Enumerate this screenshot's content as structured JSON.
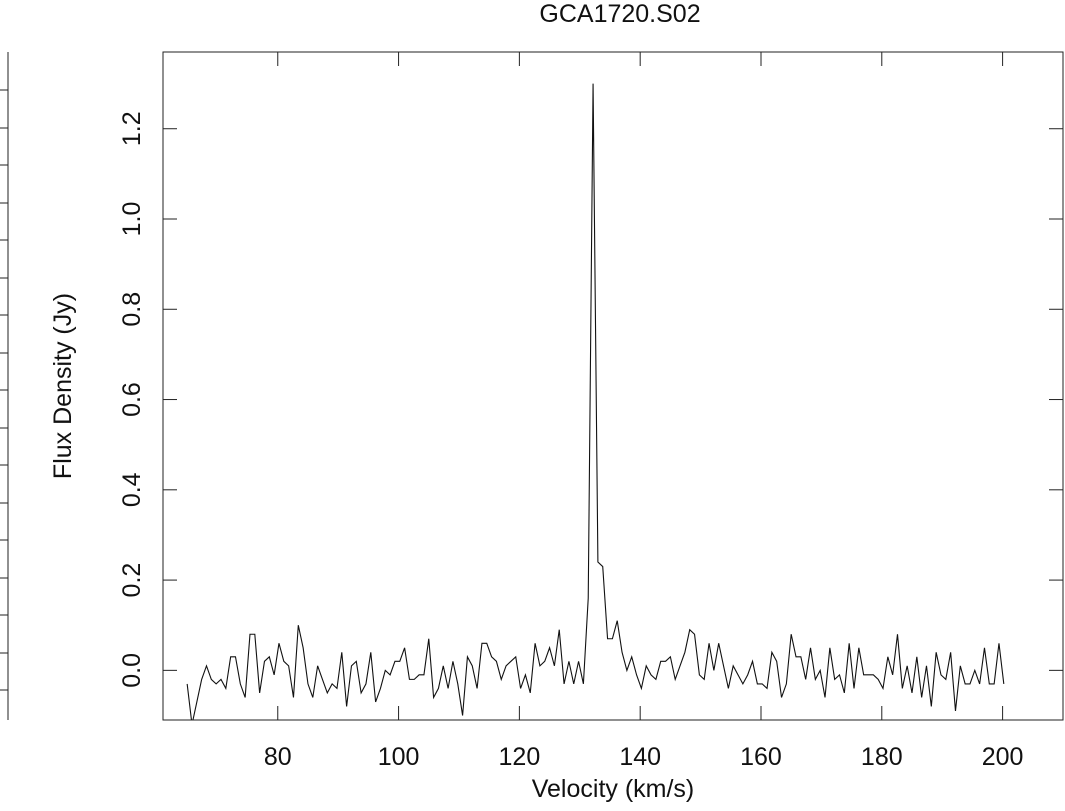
{
  "chart_data": {
    "type": "line",
    "title": "GCA1720.S02",
    "xlabel": "Velocity (km/s)",
    "ylabel": "Flux Density (Jy)",
    "color": "#111111",
    "xlim": [
      61,
      210
    ],
    "ylim": [
      -0.11,
      1.37
    ],
    "xticks": [
      80,
      100,
      120,
      140,
      160,
      180,
      200
    ],
    "yticks": [
      {
        "value": 0,
        "label": "0.0"
      },
      0.2,
      0.4,
      0.6,
      0.8,
      {
        "value": 1,
        "label": "1.0"
      },
      1.2
    ],
    "x": [
      65.0,
      65.8,
      66.6,
      67.4,
      68.2,
      69.0,
      69.8,
      70.6,
      71.4,
      72.2,
      73.0,
      73.8,
      74.6,
      75.4,
      76.2,
      77.0,
      77.8,
      78.6,
      79.4,
      80.2,
      81.0,
      81.8,
      82.6,
      83.4,
      84.2,
      85.0,
      85.8,
      86.6,
      87.4,
      88.2,
      89.0,
      89.8,
      90.6,
      91.4,
      92.2,
      93.0,
      93.8,
      94.6,
      95.4,
      96.2,
      97.0,
      97.8,
      98.6,
      99.4,
      100.2,
      101.0,
      101.8,
      102.6,
      103.4,
      104.2,
      105.0,
      105.8,
      106.6,
      107.4,
      108.2,
      109.0,
      109.8,
      110.6,
      111.4,
      112.2,
      113.0,
      113.8,
      114.6,
      115.4,
      116.2,
      117.0,
      117.8,
      118.6,
      119.4,
      120.2,
      121.0,
      121.8,
      122.6,
      123.4,
      124.2,
      125.0,
      125.8,
      126.6,
      127.4,
      128.2,
      129.0,
      129.8,
      130.6,
      131.4,
      132.2,
      133.0,
      133.8,
      134.6,
      135.4,
      136.2,
      137.0,
      137.8,
      138.6,
      139.4,
      140.2,
      141.0,
      141.8,
      142.6,
      143.4,
      144.2,
      145.0,
      145.8,
      146.6,
      147.4,
      148.2,
      149.0,
      149.8,
      150.6,
      151.4,
      152.2,
      153.0,
      153.8,
      154.6,
      155.4,
      156.2,
      157.0,
      157.8,
      158.6,
      159.4,
      160.2,
      161.0,
      161.8,
      162.6,
      163.4,
      164.2,
      165.0,
      165.8,
      166.6,
      167.4,
      168.2,
      169.0,
      169.8,
      170.6,
      171.4,
      172.2,
      173.0,
      173.8,
      174.6,
      175.4,
      176.2,
      177.0,
      177.8,
      178.6,
      179.4,
      180.2,
      181.0,
      181.8,
      182.6,
      183.4,
      184.2,
      185.0,
      185.8,
      186.6,
      187.4,
      188.2,
      189.0,
      189.8,
      190.6,
      191.4,
      192.2,
      193.0,
      193.8,
      194.6,
      195.4,
      196.2,
      197.0,
      197.8,
      198.6,
      199.4,
      200.2
    ],
    "values": [
      -0.03,
      -0.12,
      -0.07,
      -0.02,
      0.01,
      -0.02,
      -0.03,
      -0.02,
      -0.04,
      0.03,
      0.03,
      -0.03,
      -0.06,
      0.08,
      0.08,
      -0.05,
      0.02,
      0.03,
      -0.01,
      0.06,
      0.02,
      0.01,
      -0.06,
      0.1,
      0.05,
      -0.03,
      -0.06,
      0.01,
      -0.02,
      -0.05,
      -0.03,
      -0.04,
      0.04,
      -0.08,
      0.01,
      0.02,
      -0.05,
      -0.03,
      0.04,
      -0.07,
      -0.04,
      0.0,
      -0.01,
      0.02,
      0.02,
      0.05,
      -0.02,
      -0.02,
      -0.01,
      -0.01,
      0.07,
      -0.06,
      -0.04,
      0.01,
      -0.04,
      0.02,
      -0.03,
      -0.1,
      0.03,
      0.01,
      -0.04,
      0.06,
      0.06,
      0.03,
      0.02,
      -0.02,
      0.01,
      0.02,
      0.03,
      -0.04,
      -0.01,
      -0.05,
      0.06,
      0.01,
      0.02,
      0.05,
      0.01,
      0.09,
      -0.03,
      0.02,
      -0.03,
      0.02,
      -0.03,
      0.16,
      1.3,
      0.24,
      0.23,
      0.07,
      0.07,
      0.11,
      0.04,
      0.0,
      0.03,
      -0.01,
      -0.04,
      0.01,
      -0.01,
      -0.02,
      0.02,
      0.02,
      0.03,
      -0.02,
      0.01,
      0.04,
      0.09,
      0.08,
      -0.01,
      -0.02,
      0.06,
      0.0,
      0.06,
      0.01,
      -0.04,
      0.01,
      -0.01,
      -0.03,
      -0.01,
      0.02,
      -0.03,
      -0.03,
      -0.04,
      0.04,
      0.02,
      -0.06,
      -0.03,
      0.08,
      0.03,
      0.03,
      -0.02,
      0.05,
      -0.02,
      0.0,
      -0.06,
      0.05,
      -0.02,
      -0.01,
      -0.05,
      0.06,
      -0.04,
      0.05,
      -0.01,
      -0.01,
      -0.01,
      -0.02,
      -0.04,
      0.03,
      -0.01,
      0.08,
      -0.04,
      0.01,
      -0.05,
      0.03,
      -0.06,
      0.01,
      -0.08,
      0.04,
      -0.01,
      -0.02,
      0.04,
      -0.09,
      0.01,
      -0.03,
      -0.03,
      0.0,
      -0.03,
      0.05,
      -0.03,
      -0.03,
      0.06,
      -0.03
    ]
  }
}
